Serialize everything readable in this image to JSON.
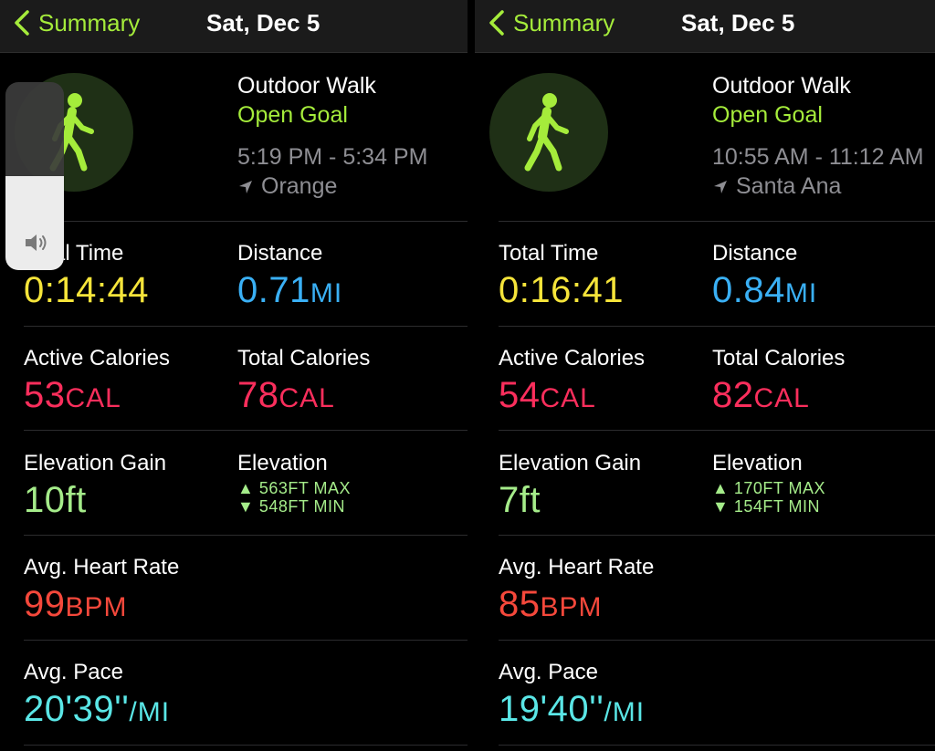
{
  "panels": [
    {
      "nav": {
        "back_label": "Summary",
        "title": "Sat, Dec 5"
      },
      "workout": {
        "name": "Outdoor Walk",
        "goal": "Open Goal",
        "time_range": "5:19 PM - 5:34 PM",
        "location": "Orange"
      },
      "stats": {
        "total_time": {
          "label": "Total Time",
          "value": "0:14:44"
        },
        "distance": {
          "label": "Distance",
          "value": "0.71",
          "unit": "MI"
        },
        "active_calories": {
          "label": "Active Calories",
          "value": "53",
          "unit": "CAL"
        },
        "total_calories": {
          "label": "Total Calories",
          "value": "78",
          "unit": "CAL"
        },
        "elevation_gain": {
          "label": "Elevation Gain",
          "value": "10ft"
        },
        "elevation": {
          "label": "Elevation",
          "max": "▲ 563FT MAX",
          "min": "▼ 548FT MIN"
        },
        "avg_heart_rate": {
          "label": "Avg. Heart Rate",
          "value": "99",
          "unit": "BPM"
        },
        "avg_pace": {
          "label": "Avg. Pace",
          "value": "20'39''",
          "unit": "/MI"
        }
      }
    },
    {
      "nav": {
        "back_label": "Summary",
        "title": "Sat, Dec 5"
      },
      "workout": {
        "name": "Outdoor Walk",
        "goal": "Open Goal",
        "time_range": "10:55 AM - 11:12 AM",
        "location": "Santa Ana"
      },
      "stats": {
        "total_time": {
          "label": "Total Time",
          "value": "0:16:41"
        },
        "distance": {
          "label": "Distance",
          "value": "0.84",
          "unit": "MI"
        },
        "active_calories": {
          "label": "Active Calories",
          "value": "54",
          "unit": "CAL"
        },
        "total_calories": {
          "label": "Total Calories",
          "value": "82",
          "unit": "CAL"
        },
        "elevation_gain": {
          "label": "Elevation Gain",
          "value": "7ft"
        },
        "elevation": {
          "label": "Elevation",
          "max": "▲ 170FT MAX",
          "min": "▼ 154FT MIN"
        },
        "avg_heart_rate": {
          "label": "Avg. Heart Rate",
          "value": "85",
          "unit": "BPM"
        },
        "avg_pace": {
          "label": "Avg. Pace",
          "value": "19'40''",
          "unit": "/MI"
        }
      }
    }
  ],
  "volume_hud": {
    "level_fraction": 0.5,
    "icon": "speaker-icon"
  },
  "colors": {
    "accent_green": "#a5ec3b",
    "time_yellow": "#f5e43a",
    "distance_blue": "#3ab0f5",
    "calories_pink": "#fa2e5c",
    "elevation_green": "#a5ec8a",
    "heart_red": "#f5483b",
    "pace_teal": "#5ae6e6"
  }
}
